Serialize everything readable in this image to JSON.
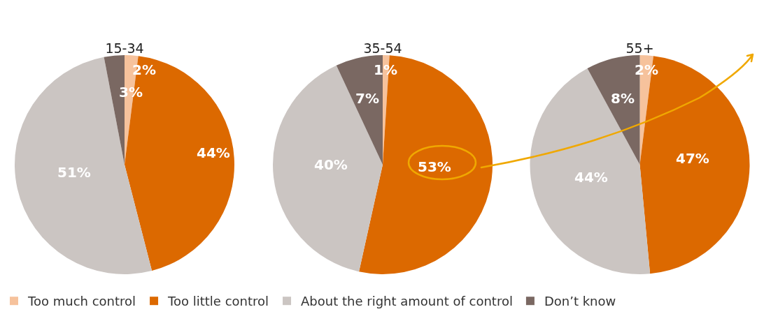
{
  "chart_data": [
    {
      "type": "pie",
      "title": "15-34",
      "categories": [
        "Too much control",
        "Too little control",
        "About the right amount of control",
        "Don’t know"
      ],
      "values": [
        2,
        44,
        51,
        3
      ],
      "value_labels": [
        "2%",
        "44%",
        "51%",
        "3%"
      ],
      "colors": [
        "#f6c29c",
        "#dc6900",
        "#cbc5c2",
        "#7a6862"
      ],
      "legend": "bottom"
    },
    {
      "type": "pie",
      "title": "35-54",
      "categories": [
        null,
        null,
        null,
        null
      ],
      "values": [
        1,
        53,
        40,
        7
      ],
      "value_labels": [
        "1%",
        "53%",
        "40%",
        "7%"
      ],
      "colors": [
        "#f6c29c",
        "#dc6900",
        "#cbc5c2",
        "#7a6862"
      ]
    },
    {
      "type": "pie",
      "title": "55+",
      "categories": [
        null,
        null,
        null,
        null
      ],
      "values": [
        2,
        47,
        44,
        8
      ],
      "value_labels": [
        "2%",
        "47%",
        "44%",
        "8%"
      ],
      "colors": [
        "#f6c29c",
        "#dc6900",
        "#cbc5c2",
        "#7a6862"
      ]
    }
  ]
}
